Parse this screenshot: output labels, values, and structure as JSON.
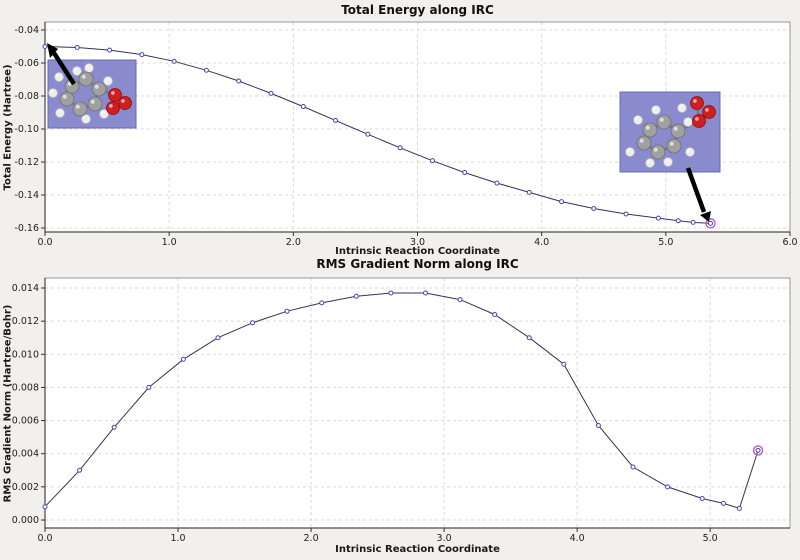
{
  "window": {
    "background_color": "#f1f0ed"
  },
  "chart_data": [
    {
      "type": "line",
      "name": "total-energy-along-irc",
      "title": "Total Energy along IRC",
      "xlabel": "Intrinsic Reaction Coordinate",
      "ylabel": "Total Energy (Hartree)",
      "xlim": [
        0.0,
        6.0
      ],
      "ylim": [
        -0.16,
        -0.04
      ],
      "xticks": [
        0.0,
        1.0,
        2.0,
        3.0,
        4.0,
        5.0,
        6.0
      ],
      "xtick_labels": [
        "0.0",
        "1.0",
        "2.0",
        "3.0",
        "4.0",
        "5.0",
        "6.0"
      ],
      "yticks": [
        -0.16,
        -0.14,
        -0.12,
        -0.1,
        -0.08,
        -0.06,
        -0.04
      ],
      "ytick_labels": [
        "-0.16",
        "-0.14",
        "-0.12",
        "-0.10",
        "-0.08",
        "-0.06",
        "-0.04"
      ],
      "grid": true,
      "legend": "none",
      "x": [
        0.0,
        0.26,
        0.52,
        0.78,
        1.04,
        1.3,
        1.56,
        1.82,
        2.08,
        2.34,
        2.6,
        2.86,
        3.12,
        3.38,
        3.64,
        3.9,
        4.16,
        4.42,
        4.68,
        4.94,
        5.1,
        5.22,
        5.36
      ],
      "y": [
        -0.05,
        -0.0506,
        -0.0522,
        -0.0549,
        -0.059,
        -0.0644,
        -0.0709,
        -0.0784,
        -0.0864,
        -0.0948,
        -0.1032,
        -0.1114,
        -0.1192,
        -0.1264,
        -0.1328,
        -0.1384,
        -0.144,
        -0.1482,
        -0.1515,
        -0.154,
        -0.1556,
        -0.1566,
        -0.1572
      ],
      "final_point": {
        "x": 5.36,
        "y": -0.1572
      },
      "line_color": "#32325a",
      "marker_color": "#4646b4",
      "final_marker_color": "#c455c4"
    },
    {
      "type": "line",
      "name": "rms-gradient-norm-along-irc",
      "title": "RMS Gradient Norm along IRC",
      "xlabel": "Intrinsic Reaction Coordinate",
      "ylabel": "RMS Gradient Norm (Hartree/Bohr)",
      "xlim": [
        0.0,
        5.6
      ],
      "ylim": [
        0.0,
        0.014
      ],
      "xticks": [
        0.0,
        1.0,
        2.0,
        3.0,
        4.0,
        5.0
      ],
      "xtick_labels": [
        "0.0",
        "1.0",
        "2.0",
        "3.0",
        "4.0",
        "5.0"
      ],
      "yticks": [
        0.0,
        0.002,
        0.004,
        0.006,
        0.008,
        0.01,
        0.012,
        0.014
      ],
      "ytick_labels": [
        "0.000",
        "0.002",
        "0.004",
        "0.006",
        "0.008",
        "0.010",
        "0.012",
        "0.014"
      ],
      "grid": true,
      "legend": "none",
      "x": [
        0.0,
        0.26,
        0.52,
        0.78,
        1.04,
        1.3,
        1.56,
        1.82,
        2.08,
        2.34,
        2.6,
        2.86,
        3.12,
        3.38,
        3.64,
        3.9,
        4.16,
        4.42,
        4.68,
        4.94,
        5.1,
        5.22,
        5.36
      ],
      "y": [
        0.0008,
        0.003,
        0.0056,
        0.008,
        0.0097,
        0.011,
        0.0119,
        0.0126,
        0.0131,
        0.0135,
        0.0137,
        0.0137,
        0.0133,
        0.0124,
        0.011,
        0.0094,
        0.0057,
        0.0032,
        0.002,
        0.0013,
        0.001,
        0.0007,
        0.0042
      ],
      "final_point": {
        "x": 5.36,
        "y": 0.0042
      },
      "line_color": "#32325a",
      "marker_color": "#4646b4",
      "final_marker_color": "#c455c4"
    }
  ],
  "annotations": {
    "reactant_molecule_icon": "ball-and-stick-molecule",
    "product_molecule_icon": "ball-and-stick-molecule",
    "panel_color": "#8a8ace",
    "panel_border_color": "#6a6ab0",
    "arrow_color": "#000000",
    "atom_colors": {
      "carbon": "#a0a0a0",
      "hydrogen": "#eeeeee",
      "oxygen": "#cf1f1f"
    }
  }
}
